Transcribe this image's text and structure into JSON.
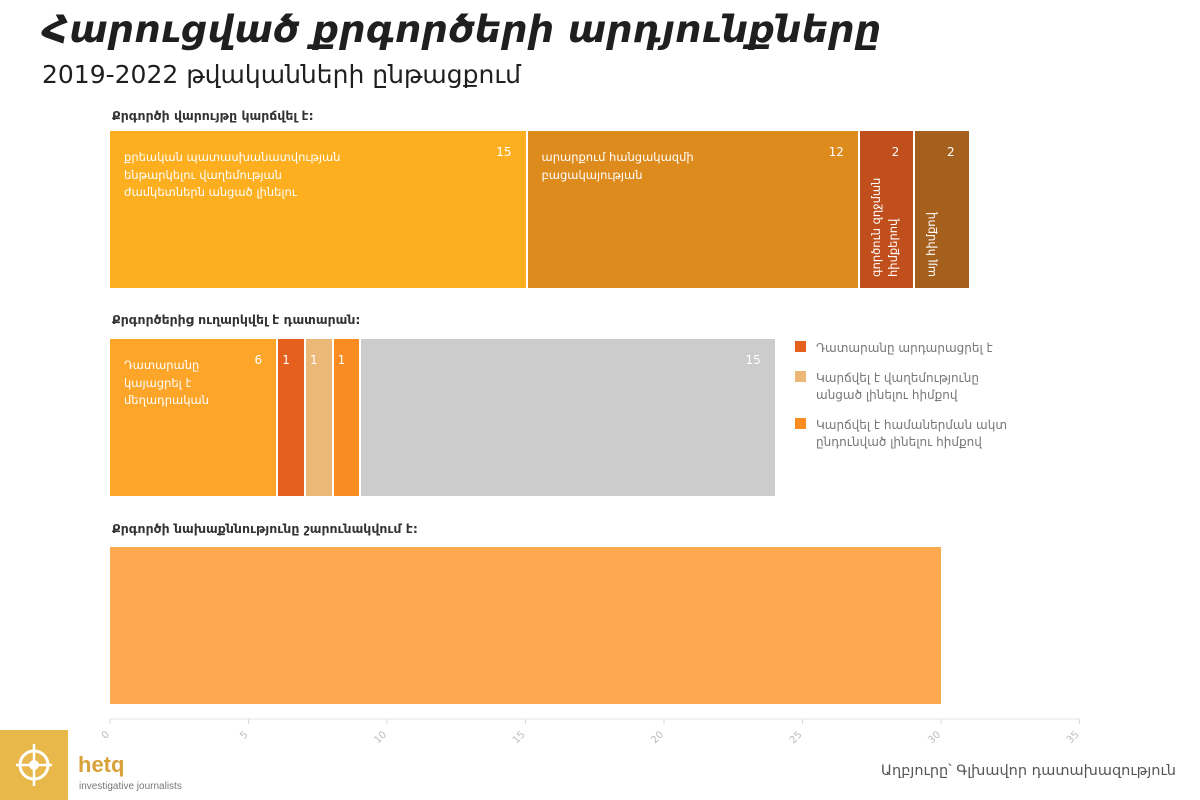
{
  "title": "Հարուցված քրգործերի արդյունքները",
  "subtitle": "2019-2022 թվականների ընթացքում",
  "source": "Աղբյուրը՝ Գլխավոր դատախազություն",
  "brand": {
    "name": "hetq",
    "tagline": "investigative journalists"
  },
  "colors": {
    "accent": "#fdaf1f",
    "brand": "#e8b84a"
  },
  "chart_data": {
    "type": "bar",
    "orientation": "horizontal-stacked",
    "xlim": [
      0,
      35
    ],
    "x_ticks": [
      "0",
      "5",
      "10",
      "15",
      "20",
      "25",
      "30",
      "35"
    ],
    "grid": false,
    "legend_position": "right",
    "legend": [
      {
        "label": "Դատարանը արդարացրել է",
        "color": "#e4601c"
      },
      {
        "label": "Կարճվել է վաղեմությունը անցած լինելու հիմքով",
        "color": "#ebb878"
      },
      {
        "label": "Կարճվել է համաներման ակտ ընդունված լինելու հիմքով",
        "color": "#fb8c21"
      }
    ],
    "groups": [
      {
        "label": "Քրգործի վարույթը կարճվել է:",
        "segments": [
          {
            "value": 15,
            "value_label": "15",
            "label": "քրեական պատասխանատվության ենթարկելու վաղեմության ժամկետներն անցած լինելու",
            "color": "#fdaf1f"
          },
          {
            "value": 12,
            "value_label": "12",
            "label": "արարքում հանցակազմի բացակայության",
            "color": "#de8b1e"
          },
          {
            "value": 2,
            "value_label": "2",
            "label": "գործուն զղջման հիմքերով",
            "color": "#c14f1d",
            "vertical": true
          },
          {
            "value": 2,
            "value_label": "2",
            "label": "այլ հիմքով",
            "color": "#a5601e",
            "vertical": true
          }
        ]
      },
      {
        "label": "Քրգործերից ուղարկվել է դատարան:",
        "segments": [
          {
            "value": 6,
            "value_label": "6",
            "label": "Դատարանը կայացրել է մեղադրական",
            "color": "#fda528"
          },
          {
            "value": 1,
            "value_label": "1",
            "label": "",
            "color": "#e4601c"
          },
          {
            "value": 1,
            "value_label": "1",
            "label": "",
            "color": "#ebb878"
          },
          {
            "value": 1,
            "value_label": "1",
            "label": "",
            "color": "#fb8c21"
          },
          {
            "value": 15,
            "value_label": "15",
            "label": "",
            "color": "#cccccc"
          }
        ]
      },
      {
        "label": "Քրգործի նախաքննությունը շարունակվում է:",
        "segments": [
          {
            "value": 30,
            "value_label": "",
            "label": "",
            "color": "#fea850"
          }
        ]
      }
    ]
  }
}
